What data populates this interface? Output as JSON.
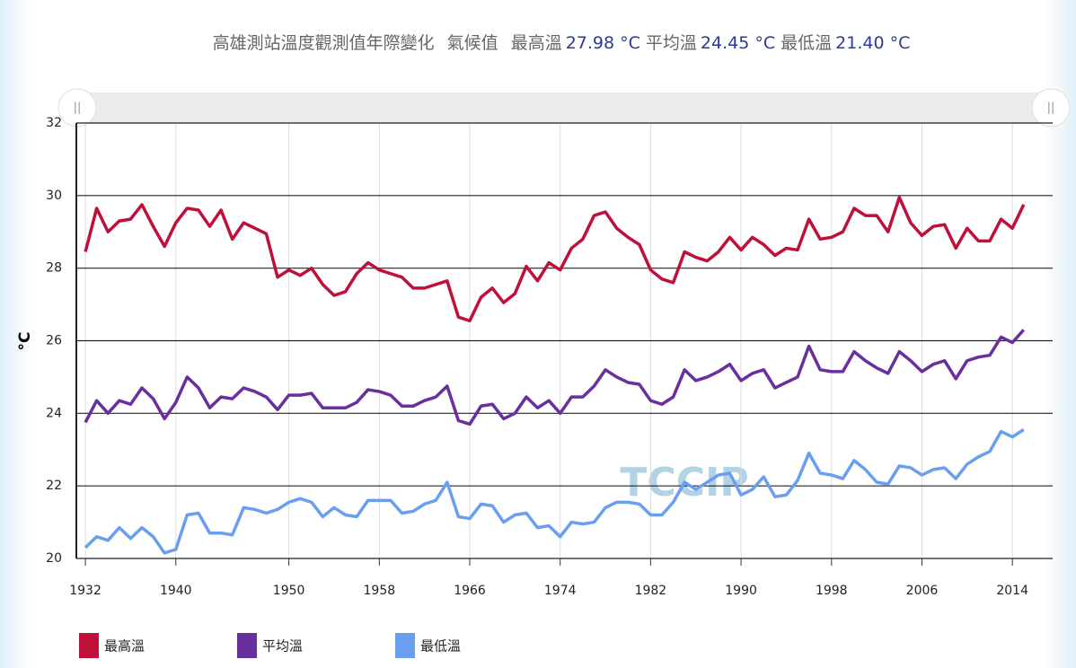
{
  "chart_data": {
    "type": "line",
    "title": "高雄測站溫度觀測值年際變化",
    "climate_label": "氣候值",
    "climate": [
      {
        "name": "最高溫",
        "value": "27.98 °C"
      },
      {
        "name": "平均溫",
        "value": "24.45 °C"
      },
      {
        "name": "最低溫",
        "value": "21.40 °C"
      }
    ],
    "y_label": "°C",
    "watermark": "TCCIP",
    "x": [
      1932,
      1933,
      1934,
      1935,
      1936,
      1937,
      1938,
      1939,
      1940,
      1941,
      1942,
      1943,
      1944,
      1945,
      1946,
      1947,
      1948,
      1949,
      1950,
      1951,
      1952,
      1953,
      1954,
      1955,
      1956,
      1957,
      1958,
      1959,
      1960,
      1961,
      1962,
      1963,
      1964,
      1965,
      1966,
      1967,
      1968,
      1969,
      1970,
      1971,
      1972,
      1973,
      1974,
      1975,
      1976,
      1977,
      1978,
      1979,
      1980,
      1981,
      1982,
      1983,
      1984,
      1985,
      1986,
      1987,
      1988,
      1989,
      1990,
      1991,
      1992,
      1993,
      1994,
      1995,
      1996,
      1997,
      1998,
      1999,
      2000,
      2001,
      2002,
      2003,
      2004,
      2005,
      2006,
      2007,
      2008,
      2009,
      2010,
      2011,
      2012,
      2013,
      2014,
      2015
    ],
    "series": [
      {
        "name": "最高溫",
        "color": "#c0103a",
        "values": [
          28.45,
          29.65,
          29.0,
          29.3,
          29.35,
          29.75,
          29.15,
          28.6,
          29.25,
          29.65,
          29.6,
          29.15,
          29.6,
          28.8,
          29.25,
          29.1,
          28.95,
          27.75,
          27.95,
          27.8,
          28.0,
          27.55,
          27.25,
          27.35,
          27.85,
          28.15,
          27.95,
          27.85,
          27.75,
          27.45,
          27.45,
          27.55,
          27.65,
          26.65,
          26.55,
          27.2,
          27.45,
          27.05,
          27.3,
          28.05,
          27.65,
          28.15,
          27.95,
          28.55,
          28.8,
          29.45,
          29.55,
          29.1,
          28.85,
          28.65,
          27.95,
          27.7,
          27.6,
          28.45,
          28.3,
          28.2,
          28.45,
          28.85,
          28.5,
          28.85,
          28.65,
          28.35,
          28.55,
          28.5,
          29.35,
          28.8,
          28.85,
          29.0,
          29.65,
          29.45,
          29.45,
          29.0,
          29.95,
          29.25,
          28.9,
          29.15,
          29.2,
          28.55,
          29.1,
          28.75,
          28.75,
          29.35,
          29.1,
          29.75
        ]
      },
      {
        "name": "平均溫",
        "color": "#6a2f9e",
        "values": [
          23.75,
          24.35,
          24.0,
          24.35,
          24.25,
          24.7,
          24.4,
          23.85,
          24.3,
          25.0,
          24.7,
          24.15,
          24.45,
          24.4,
          24.7,
          24.6,
          24.45,
          24.1,
          24.5,
          24.5,
          24.55,
          24.15,
          24.15,
          24.15,
          24.3,
          24.65,
          24.6,
          24.5,
          24.2,
          24.2,
          24.35,
          24.45,
          24.75,
          23.8,
          23.7,
          24.2,
          24.25,
          23.85,
          24.0,
          24.45,
          24.15,
          24.35,
          24.0,
          24.45,
          24.45,
          24.75,
          25.2,
          25.0,
          24.85,
          24.8,
          24.35,
          24.25,
          24.45,
          25.2,
          24.9,
          25.0,
          25.15,
          25.35,
          24.9,
          25.1,
          25.2,
          24.7,
          24.85,
          25.0,
          25.85,
          25.2,
          25.15,
          25.15,
          25.7,
          25.45,
          25.25,
          25.1,
          25.7,
          25.45,
          25.15,
          25.35,
          25.45,
          24.95,
          25.45,
          25.55,
          25.6,
          26.1,
          25.95,
          26.3
        ]
      },
      {
        "name": "最低溫",
        "color": "#6a9ef0",
        "values": [
          20.3,
          20.6,
          20.5,
          20.85,
          20.55,
          20.85,
          20.6,
          20.15,
          20.25,
          21.2,
          21.25,
          20.7,
          20.7,
          20.65,
          21.4,
          21.35,
          21.25,
          21.35,
          21.55,
          21.65,
          21.55,
          21.15,
          21.4,
          21.2,
          21.15,
          21.6,
          21.6,
          21.6,
          21.25,
          21.3,
          21.5,
          21.6,
          22.1,
          21.15,
          21.1,
          21.5,
          21.45,
          21.0,
          21.2,
          21.25,
          20.85,
          20.9,
          20.6,
          21.0,
          20.95,
          21.0,
          21.4,
          21.55,
          21.55,
          21.5,
          21.2,
          21.2,
          21.55,
          22.1,
          21.9,
          22.1,
          22.3,
          22.35,
          21.75,
          21.9,
          22.25,
          21.7,
          21.75,
          22.15,
          22.9,
          22.35,
          22.3,
          22.2,
          22.7,
          22.45,
          22.1,
          22.05,
          22.55,
          22.5,
          22.3,
          22.45,
          22.5,
          22.2,
          22.6,
          22.8,
          22.95,
          23.5,
          23.35,
          23.55
        ]
      }
    ],
    "xlim": [
      1931.2,
      2017.8
    ],
    "xticks": [
      1932,
      1940,
      1950,
      1958,
      1966,
      1974,
      1982,
      1990,
      1998,
      2006,
      2014
    ],
    "ylim": [
      20,
      32
    ],
    "yticks": [
      20,
      22,
      24,
      26,
      28,
      30,
      32
    ],
    "grid": true
  }
}
